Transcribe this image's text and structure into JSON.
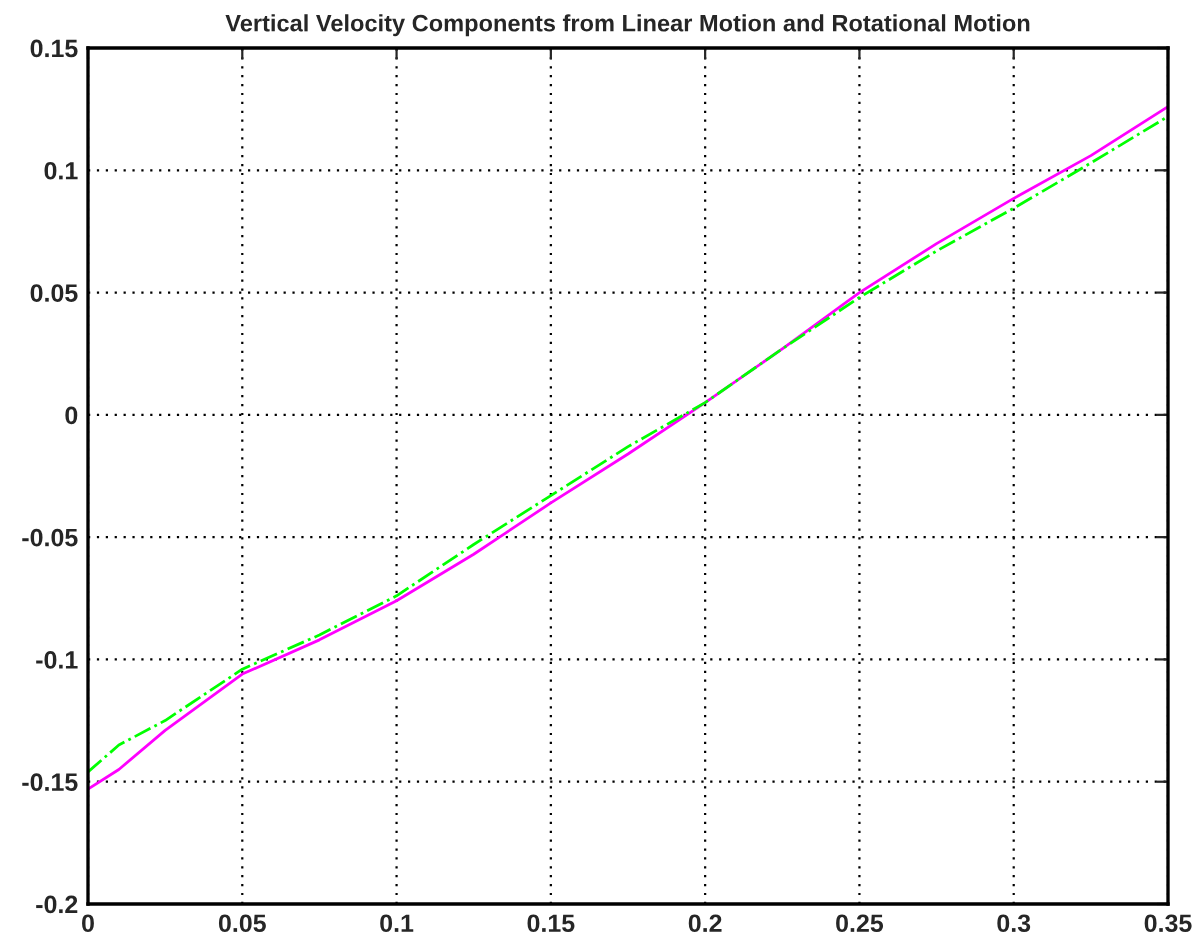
{
  "chart_data": {
    "type": "line",
    "title": "Vertical Velocity Components from Linear Motion and Rotational Motion",
    "x": [
      0,
      0.01,
      0.025,
      0.05,
      0.075,
      0.1,
      0.125,
      0.15,
      0.175,
      0.2,
      0.225,
      0.25,
      0.275,
      0.3,
      0.325,
      0.35
    ],
    "series": [
      {
        "color": "#ff00ff",
        "line_style": "solid",
        "values": [
          -0.153,
          -0.145,
          -0.129,
          -0.106,
          -0.092,
          -0.076,
          -0.057,
          -0.036,
          -0.016,
          0.005,
          0.027,
          0.05,
          0.07,
          0.0885,
          0.106,
          0.126
        ]
      },
      {
        "color": "#00ff00",
        "line_style": "dashed",
        "values": [
          -0.146,
          -0.135,
          -0.125,
          -0.104,
          -0.09,
          -0.074,
          -0.053,
          -0.033,
          -0.013,
          0.005,
          0.027,
          0.048,
          0.067,
          0.0845,
          0.103,
          0.122
        ]
      }
    ],
    "xlim": [
      0,
      0.35
    ],
    "xticks": [
      0,
      0.05,
      0.1,
      0.15,
      0.2,
      0.25,
      0.3,
      0.35
    ],
    "ylim": [
      -0.2,
      0.15
    ],
    "yticks": [
      -0.2,
      -0.15,
      -0.1,
      -0.05,
      0,
      0.05,
      0.1,
      0.15
    ],
    "grid": true
  }
}
